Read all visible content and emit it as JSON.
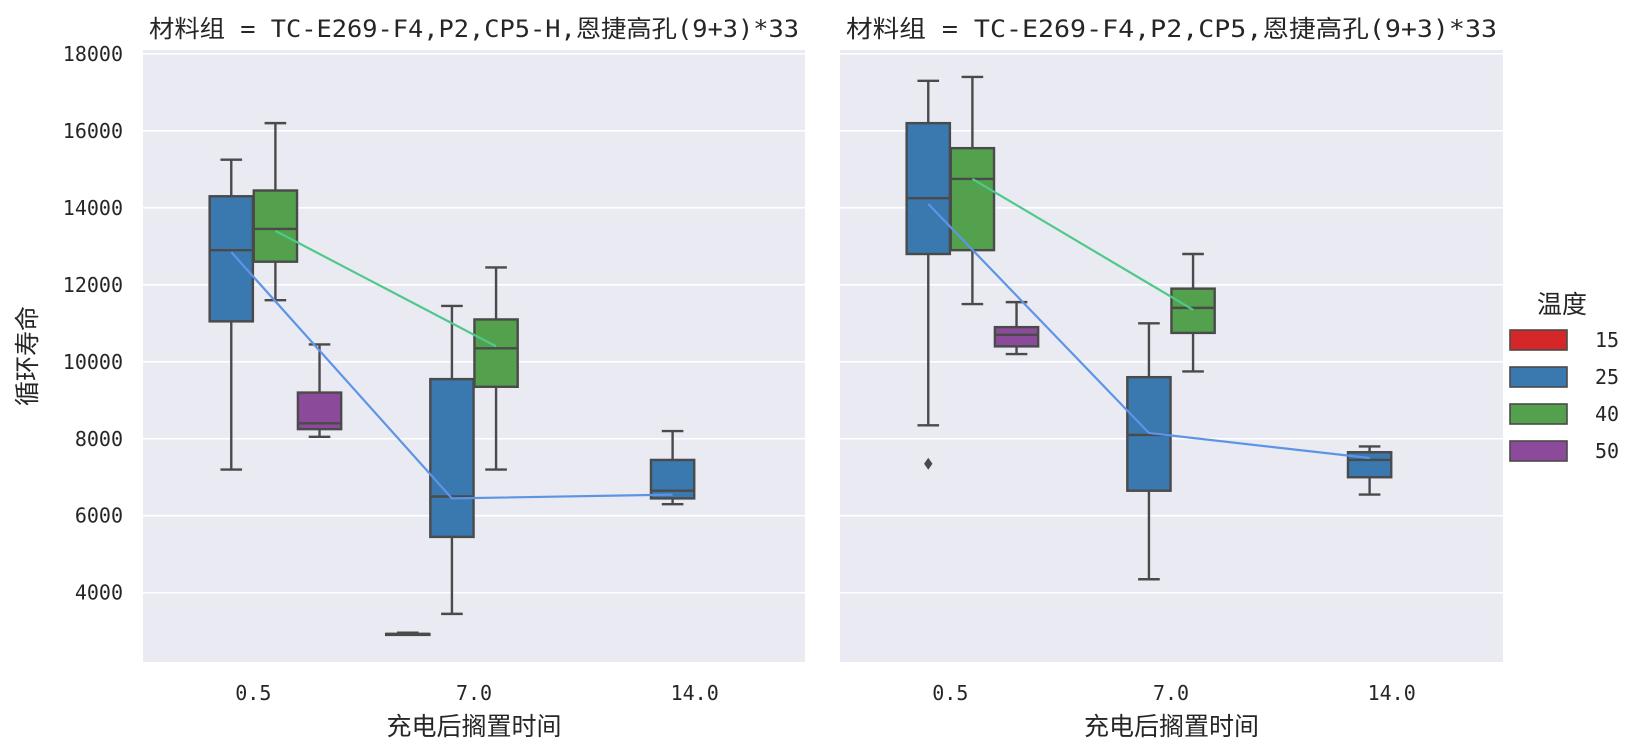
{
  "chart_data": {
    "type": "box",
    "ylabel": "循环寿命",
    "xlabel": "充电后搁置时间",
    "categories": [
      "0.5",
      "7.0",
      "14.0"
    ],
    "yticks": [
      4000,
      6000,
      8000,
      10000,
      12000,
      14000,
      16000,
      18000
    ],
    "ylim": [
      2200,
      18100
    ],
    "grid": true,
    "legend": {
      "title": "温度",
      "position": "right",
      "entries": [
        {
          "label": "15",
          "color": "#d62728"
        },
        {
          "label": "25",
          "color": "#3a78b0"
        },
        {
          "label": "40",
          "color": "#53a14d"
        },
        {
          "label": "50",
          "color": "#8c4a9a"
        }
      ]
    },
    "hue_levels": [
      "15",
      "25",
      "40",
      "50"
    ],
    "line_colors": {
      "25": "#5c95e6",
      "40": "#4fc98a"
    },
    "panels": [
      {
        "title": "材料组 = TC-E269-F4,P2,CP5-H,恩捷高孔(9+3)*33",
        "boxes": [
          {
            "category": "0.5",
            "hue": "25",
            "whislo": 7200,
            "q1": 11050,
            "med": 12900,
            "q3": 14300,
            "whishi": 15250,
            "fliers": []
          },
          {
            "category": "0.5",
            "hue": "40",
            "whislo": 11600,
            "q1": 12600,
            "med": 13450,
            "q3": 14450,
            "whishi": 16200,
            "fliers": []
          },
          {
            "category": "0.5",
            "hue": "50",
            "whislo": 8050,
            "q1": 8250,
            "med": 8400,
            "q3": 9200,
            "whishi": 10450,
            "fliers": []
          },
          {
            "category": "7.0",
            "hue": "15",
            "whislo": 2930,
            "q1": 2930,
            "med": 2930,
            "q3": 2930,
            "whishi": 2960,
            "fliers": []
          },
          {
            "category": "7.0",
            "hue": "25",
            "whislo": 3450,
            "q1": 5450,
            "med": 6500,
            "q3": 9550,
            "whishi": 11450,
            "fliers": []
          },
          {
            "category": "7.0",
            "hue": "40",
            "whislo": 7200,
            "q1": 9350,
            "med": 10350,
            "q3": 11100,
            "whishi": 12450,
            "fliers": []
          },
          {
            "category": "14.0",
            "hue": "25",
            "whislo": 6300,
            "q1": 6450,
            "med": 6650,
            "q3": 7450,
            "whishi": 8200,
            "fliers": []
          }
        ],
        "lines": [
          {
            "hue": "25",
            "points": [
              [
                "0.5",
                12850
              ],
              [
                "7.0",
                6450
              ],
              [
                "14.0",
                6550
              ]
            ]
          },
          {
            "hue": "40",
            "points": [
              [
                "0.5",
                13400
              ],
              [
                "7.0",
                10400
              ]
            ]
          }
        ]
      },
      {
        "title": "材料组 = TC-E269-F4,P2,CP5,恩捷高孔(9+3)*33",
        "boxes": [
          {
            "category": "0.5",
            "hue": "25",
            "whislo": 8350,
            "q1": 12800,
            "med": 14250,
            "q3": 16200,
            "whishi": 17300,
            "fliers": [
              7350
            ]
          },
          {
            "category": "0.5",
            "hue": "40",
            "whislo": 11500,
            "q1": 12900,
            "med": 14750,
            "q3": 15550,
            "whishi": 17400,
            "fliers": []
          },
          {
            "category": "0.5",
            "hue": "50",
            "whislo": 10200,
            "q1": 10400,
            "med": 10700,
            "q3": 10900,
            "whishi": 11550,
            "fliers": []
          },
          {
            "category": "7.0",
            "hue": "25",
            "whislo": 4350,
            "q1": 6650,
            "med": 8100,
            "q3": 9600,
            "whishi": 11000,
            "fliers": []
          },
          {
            "category": "7.0",
            "hue": "40",
            "whislo": 9750,
            "q1": 10750,
            "med": 11400,
            "q3": 11900,
            "whishi": 12800,
            "fliers": []
          },
          {
            "category": "14.0",
            "hue": "25",
            "whislo": 6550,
            "q1": 7000,
            "med": 7450,
            "q3": 7650,
            "whishi": 7800,
            "fliers": []
          }
        ],
        "lines": [
          {
            "hue": "25",
            "points": [
              [
                "0.5",
                14100
              ],
              [
                "7.0",
                8150
              ],
              [
                "14.0",
                7500
              ]
            ]
          },
          {
            "hue": "40",
            "points": [
              [
                "0.5",
                14750
              ],
              [
                "7.0",
                11350
              ]
            ]
          }
        ]
      }
    ]
  }
}
